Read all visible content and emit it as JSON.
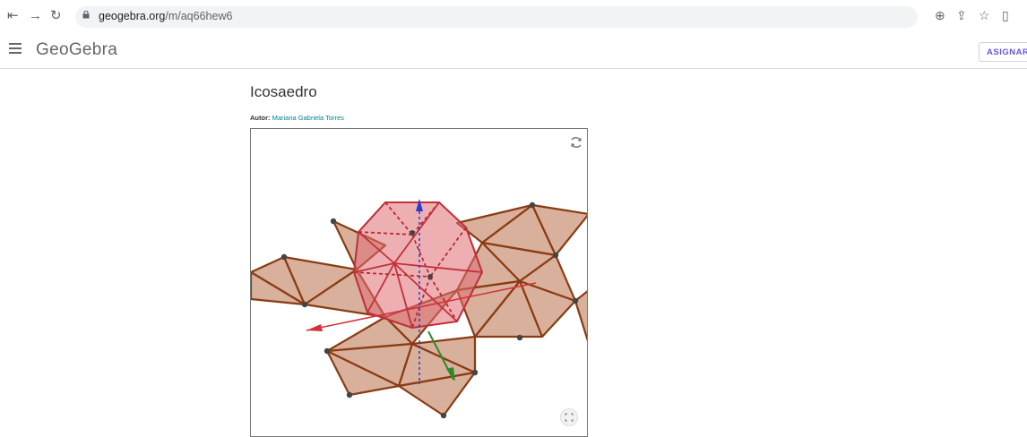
{
  "browser": {
    "back_icon": "arrow-left-icon",
    "forward_icon": "arrow-right-icon",
    "reload_icon": "reload-icon",
    "url_domain": "geogebra.org",
    "url_path": "/m/aq66hew6",
    "zoom_icon": "zoom-icon",
    "share_icon": "share-icon",
    "bookmark_icon": "star-icon",
    "sidepanel_icon": "side-panel-icon"
  },
  "header": {
    "logo": "GeoGebra",
    "assign_label": "ASIGNAR"
  },
  "main": {
    "title": "Icosaedro",
    "author_label": "Autor:",
    "author_name": "Mariana Gabriela Torres"
  },
  "colors": {
    "accent": "#6557d2",
    "author_link": "#00838f",
    "net_fill": "#d9b3a0",
    "net_stroke": "#8a3b12",
    "solid_fill": "#e07a7f",
    "solid_stroke": "#c0303a"
  }
}
